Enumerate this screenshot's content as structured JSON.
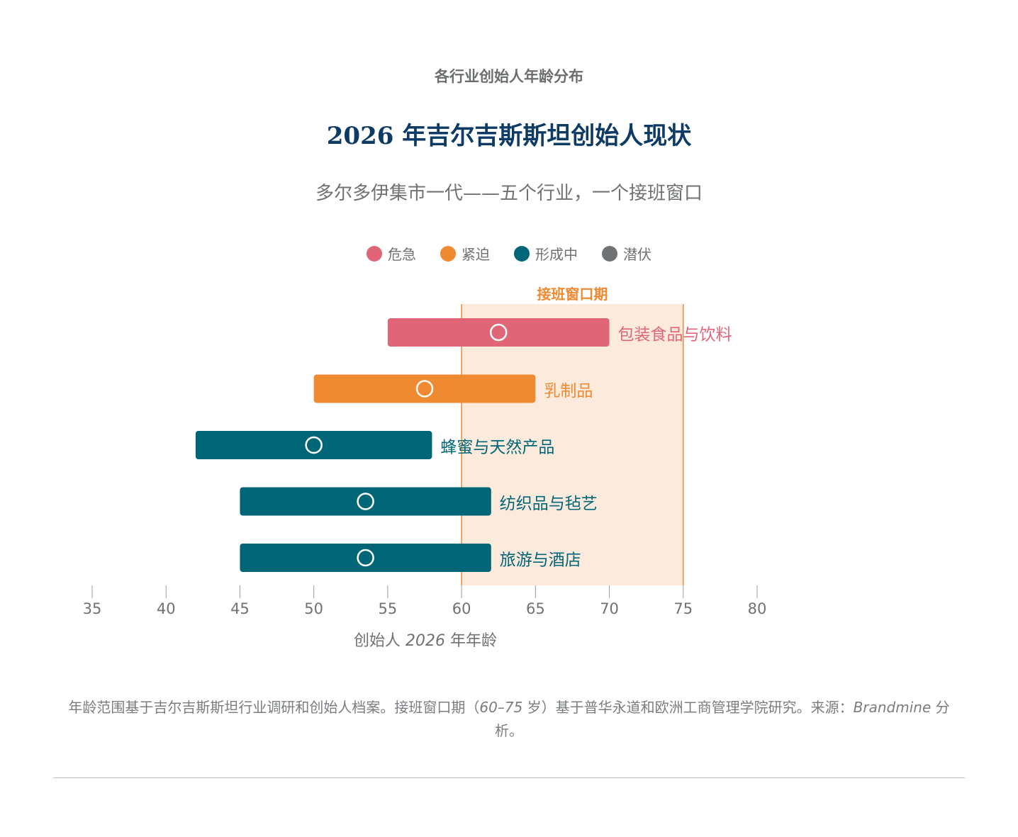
{
  "header": {
    "kicker": "各行业创始人年龄分布",
    "title": "2026 年吉尔吉斯斯坦创始人现状",
    "subtitle": "多尔多伊集市一代——五个行业，一个接班窗口"
  },
  "legend": [
    {
      "label": "危急",
      "color": "#e06677"
    },
    {
      "label": "紧迫",
      "color": "#ef8a33"
    },
    {
      "label": "形成中",
      "color": "#006677"
    },
    {
      "label": "潜伏",
      "color": "#6f7274"
    }
  ],
  "chart_data": {
    "type": "range-bar",
    "xlabel": "创始人 2026 年年龄",
    "xlabel_parts": {
      "pre": "创始人 ",
      "em": "2026",
      "post": " 年年龄"
    },
    "xlim": [
      35,
      80
    ],
    "xticks": [
      35,
      40,
      45,
      50,
      55,
      60,
      65,
      70,
      75,
      80
    ],
    "window": {
      "label": "接班窗口期",
      "start": 60,
      "end": 75,
      "fill": "#fcebdd",
      "stroke": "#ef8a33"
    },
    "series": [
      {
        "name": "包装食品与饮料",
        "min": 55,
        "max": 70,
        "median": 62.5,
        "status": "危急",
        "color": "#e06677"
      },
      {
        "name": "乳制品",
        "min": 50,
        "max": 65,
        "median": 57.5,
        "status": "紧迫",
        "color": "#ef8a33"
      },
      {
        "name": "蜂蜜与天然产品",
        "min": 42,
        "max": 58,
        "median": 50,
        "status": "形成中",
        "color": "#006677"
      },
      {
        "name": "纺织品与毡艺",
        "min": 45,
        "max": 62,
        "median": 53.5,
        "status": "形成中",
        "color": "#006677"
      },
      {
        "name": "旅游与酒店",
        "min": 45,
        "max": 62,
        "median": 53.5,
        "status": "形成中",
        "color": "#006677"
      }
    ],
    "text_color": "#6f7274"
  },
  "footnote": {
    "part1": "年龄范围基于吉尔吉斯斯坦行业调研和创始人档案。接班窗口期（",
    "range": "60–75",
    "part2": " 岁）基于普华永道和欧洲工商管理学院研究。来源：",
    "source": "Brandmine",
    "part3": " 分析。"
  }
}
